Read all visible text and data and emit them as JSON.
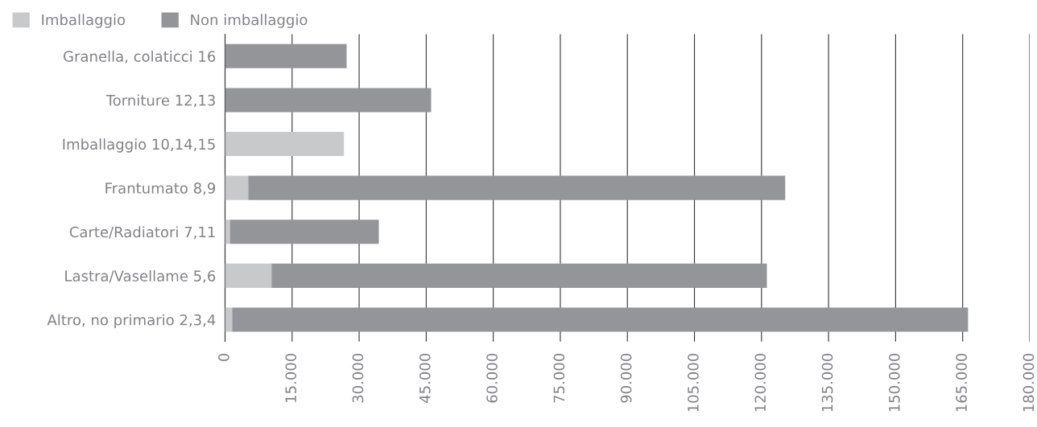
{
  "chart_data": {
    "type": "bar",
    "orientation": "horizontal",
    "stacked": true,
    "categories": [
      "Granella, colaticci 16",
      "Torniture 12,13",
      "Imballaggio 10,14,15",
      "Frantumato 8,9",
      "Carte/Radiatori 7,11",
      "Lastra/Vasellame 5,6",
      "Altro, no primario 2,3,4"
    ],
    "series": [
      {
        "name": "Imballaggio",
        "color": "#c8c9ca",
        "values": [
          0,
          0,
          26600,
          5200,
          1100,
          10400,
          1600
        ]
      },
      {
        "name": "Non imballaggio",
        "color": "#939598",
        "values": [
          27200,
          46100,
          0,
          120100,
          33300,
          110800,
          164600
        ]
      }
    ],
    "xlim": [
      0,
      180000
    ],
    "xticks": [
      0,
      {
        "value": 15000,
        "label": "15.000"
      },
      {
        "value": 30000,
        "label": "30.000"
      },
      {
        "value": 45000,
        "label": "45.000"
      },
      {
        "value": 60000,
        "label": "60.000"
      },
      {
        "value": 75000,
        "label": "75.000"
      },
      {
        "value": 90000,
        "label": "90.000"
      },
      {
        "value": 105000,
        "label": "105.000"
      },
      {
        "value": 120000,
        "label": "120.000"
      },
      {
        "value": 135000,
        "label": "135.000"
      },
      {
        "value": 150000,
        "label": "150.000"
      },
      {
        "value": 165000,
        "label": "165.000"
      },
      {
        "value": 180000,
        "label": "180.000"
      }
    ],
    "grid": "x",
    "legend": "top left"
  }
}
